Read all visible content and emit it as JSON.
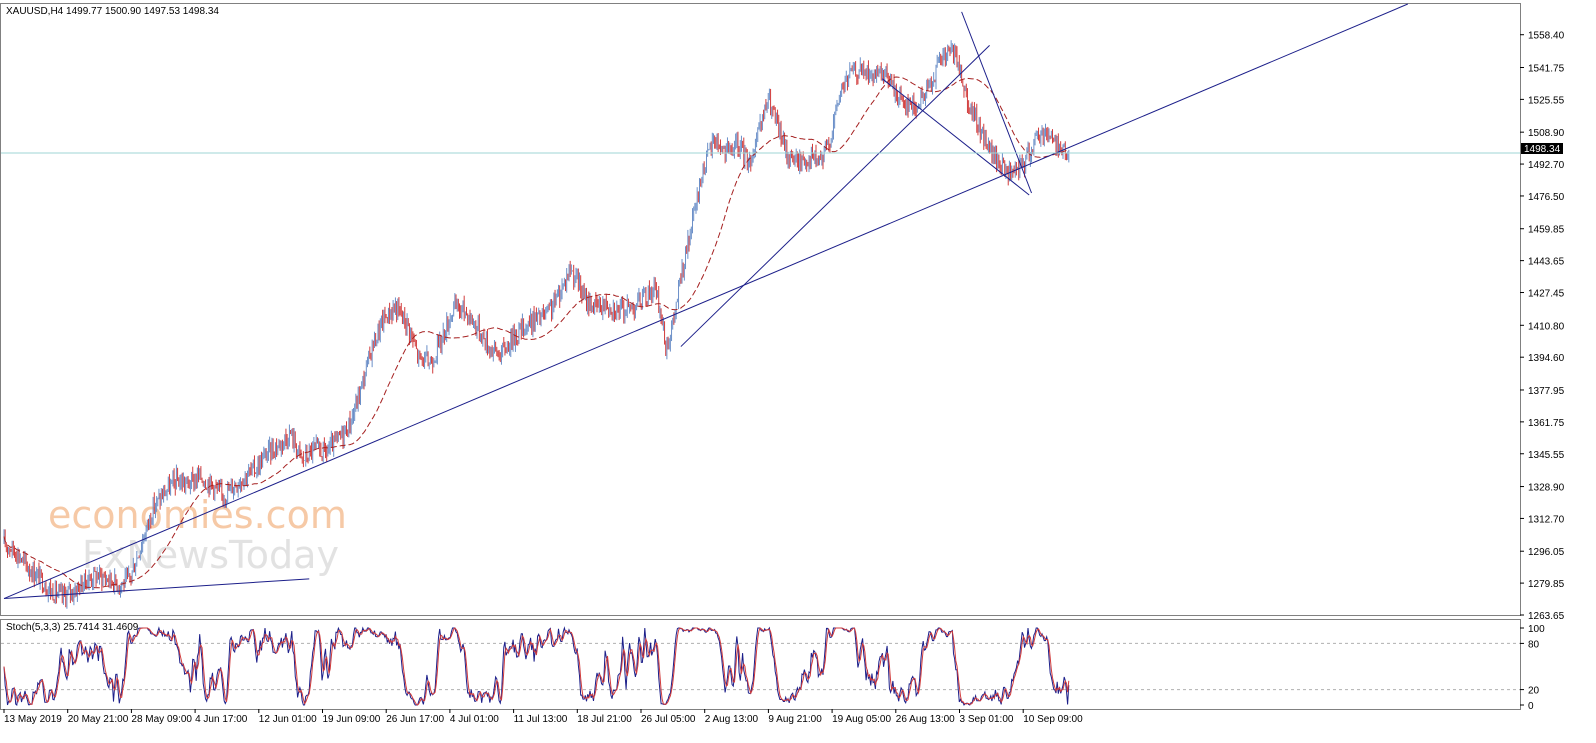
{
  "chart_data": {
    "type": "candlestick",
    "symbol_header": "XAUUSD,H4  1499.77 1500.90 1497.53 1498.34",
    "current_price": 1498.34,
    "current_price_label": "1498.34",
    "y_range": [
      1263.65,
      1574.0
    ],
    "y_ticks": [
      "1558.40",
      "1541.75",
      "1525.55",
      "1508.90",
      "1492.70",
      "1476.50",
      "1459.85",
      "1443.65",
      "1427.45",
      "1410.80",
      "1394.60",
      "1377.95",
      "1361.75",
      "1345.55",
      "1328.90",
      "1312.70",
      "1296.05",
      "1279.85",
      "1263.65"
    ],
    "x_ticks": [
      "13 May 2019",
      "20 May 21:00",
      "28 May 09:00",
      "4 Jun 17:00",
      "12 Jun 01:00",
      "19 Jun 09:00",
      "26 Jun 17:00",
      "4 Jul 01:00",
      "11 Jul 13:00",
      "18 Jul 21:00",
      "26 Jul 05:00",
      "2 Aug 13:00",
      "9 Aug 21:00",
      "19 Aug 05:00",
      "26 Aug 13:00",
      "3 Sep 01:00",
      "10 Sep 09:00"
    ],
    "bull_color": "#6b8fc8",
    "bear_color": "#d13b3b",
    "ma_color": "#a52020",
    "trendline_color": "#1c1f8a",
    "price_anchors": [
      [
        0,
        1300
      ],
      [
        10,
        1296
      ],
      [
        20,
        1288
      ],
      [
        30,
        1283
      ],
      [
        40,
        1276
      ],
      [
        50,
        1273
      ],
      [
        60,
        1276
      ],
      [
        70,
        1281
      ],
      [
        80,
        1284
      ],
      [
        90,
        1282
      ],
      [
        100,
        1279
      ],
      [
        108,
        1282
      ],
      [
        118,
        1300
      ],
      [
        128,
        1318
      ],
      [
        138,
        1326
      ],
      [
        148,
        1332
      ],
      [
        158,
        1330
      ],
      [
        168,
        1334
      ],
      [
        178,
        1330
      ],
      [
        188,
        1324
      ],
      [
        198,
        1330
      ],
      [
        206,
        1334
      ],
      [
        216,
        1338
      ],
      [
        226,
        1346
      ],
      [
        236,
        1350
      ],
      [
        246,
        1356
      ],
      [
        256,
        1342
      ],
      [
        266,
        1348
      ],
      [
        276,
        1346
      ],
      [
        286,
        1352
      ],
      [
        296,
        1360
      ],
      [
        300,
        1366
      ],
      [
        308,
        1382
      ],
      [
        316,
        1400
      ],
      [
        326,
        1414
      ],
      [
        336,
        1420
      ],
      [
        346,
        1412
      ],
      [
        356,
        1394
      ],
      [
        366,
        1392
      ],
      [
        376,
        1404
      ],
      [
        386,
        1420
      ],
      [
        396,
        1418
      ],
      [
        406,
        1410
      ],
      [
        416,
        1400
      ],
      [
        426,
        1396
      ],
      [
        436,
        1404
      ],
      [
        446,
        1410
      ],
      [
        456,
        1414
      ],
      [
        466,
        1416
      ],
      [
        476,
        1426
      ],
      [
        486,
        1440
      ],
      [
        492,
        1434
      ],
      [
        498,
        1424
      ],
      [
        508,
        1420
      ],
      [
        518,
        1422
      ],
      [
        528,
        1418
      ],
      [
        538,
        1420
      ],
      [
        548,
        1424
      ],
      [
        558,
        1430
      ],
      [
        564,
        1416
      ],
      [
        568,
        1400
      ],
      [
        574,
        1410
      ],
      [
        580,
        1432
      ],
      [
        590,
        1460
      ],
      [
        600,
        1490
      ],
      [
        610,
        1506
      ],
      [
        620,
        1498
      ],
      [
        630,
        1502
      ],
      [
        640,
        1494
      ],
      [
        648,
        1508
      ],
      [
        656,
        1526
      ],
      [
        664,
        1512
      ],
      [
        672,
        1498
      ],
      [
        682,
        1494
      ],
      [
        692,
        1496
      ],
      [
        702,
        1494
      ],
      [
        710,
        1508
      ],
      [
        718,
        1530
      ],
      [
        728,
        1540
      ],
      [
        738,
        1540
      ],
      [
        748,
        1536
      ],
      [
        758,
        1538
      ],
      [
        766,
        1528
      ],
      [
        774,
        1524
      ],
      [
        784,
        1522
      ],
      [
        794,
        1532
      ],
      [
        804,
        1546
      ],
      [
        814,
        1550
      ],
      [
        822,
        1538
      ],
      [
        830,
        1520
      ],
      [
        838,
        1510
      ],
      [
        848,
        1498
      ],
      [
        856,
        1492
      ],
      [
        866,
        1486
      ],
      [
        876,
        1494
      ],
      [
        886,
        1506
      ],
      [
        894,
        1510
      ],
      [
        902,
        1504
      ],
      [
        908,
        1500
      ],
      [
        914,
        1498
      ]
    ],
    "stoch_header": "Stoch(5,3,3) 25.7414 31.4609",
    "stoch_range": [
      0,
      100
    ],
    "stoch_ticks": [
      "100",
      "80",
      "20",
      "0"
    ],
    "stoch_levels": [
      80,
      20
    ],
    "stoch_last": [
      25.7414,
      31.4609
    ]
  },
  "watermark": {
    "line1": "economies.com",
    "line2": "FxNewsToday"
  }
}
